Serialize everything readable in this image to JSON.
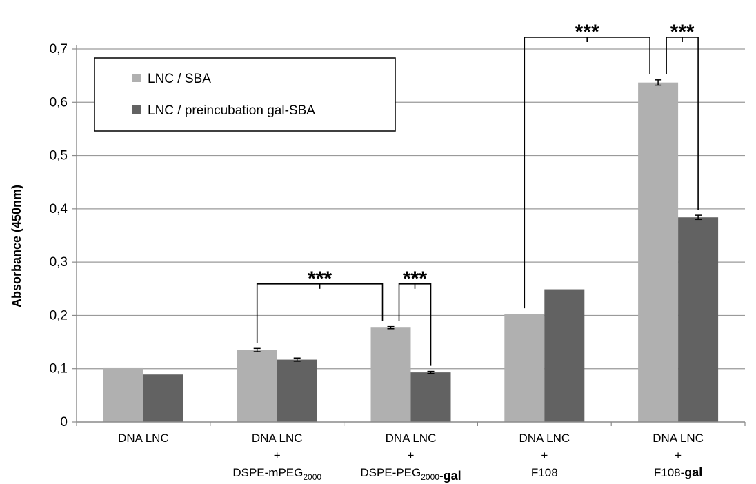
{
  "chart_data": {
    "type": "bar",
    "ylabel": "Absorbance (450nm)",
    "xlabel": "",
    "ylim": [
      0,
      0.7
    ],
    "yticks": [
      "0",
      "0,1",
      "0,2",
      "0,3",
      "0,4",
      "0,5",
      "0,6",
      "0,7"
    ],
    "grid": true,
    "legend_position": "top-left",
    "categories": [
      {
        "lines": [
          "DNA LNC"
        ]
      },
      {
        "lines": [
          "DNA LNC",
          "+",
          "DSPE-mPEG|2000|"
        ]
      },
      {
        "lines": [
          "DNA LNC",
          "+",
          "DSPE-PEG|2000|-**gal**"
        ]
      },
      {
        "lines": [
          "DNA LNC",
          "+",
          "F108"
        ]
      },
      {
        "lines": [
          "DNA LNC",
          "+",
          "F108-**gal**"
        ]
      }
    ],
    "series": [
      {
        "name": "LNC / SBA",
        "color": "#b0b0b0",
        "values": [
          0.101,
          0.135,
          0.177,
          0.203,
          0.637
        ],
        "errors": [
          0,
          0.003,
          0.002,
          0,
          0.005
        ]
      },
      {
        "name": "LNC / preincubation gal-SBA",
        "color": "#626262",
        "values": [
          0.089,
          0.117,
          0.093,
          0.249,
          0.384
        ],
        "errors": [
          0,
          0.003,
          0.002,
          0,
          0.004
        ]
      }
    ],
    "annotations": [
      {
        "text": "***",
        "from": [
          1,
          0
        ],
        "to": [
          2,
          0
        ],
        "bracket_y": 0.259
      },
      {
        "text": "***",
        "from": [
          2,
          0
        ],
        "to": [
          2,
          1
        ],
        "bracket_y": 0.259
      },
      {
        "text": "***",
        "from": [
          3,
          0
        ],
        "to": [
          4,
          0
        ],
        "bracket_y": 0.722
      },
      {
        "text": "***",
        "from": [
          4,
          0
        ],
        "to": [
          4,
          1
        ],
        "bracket_y": 0.722
      }
    ]
  }
}
